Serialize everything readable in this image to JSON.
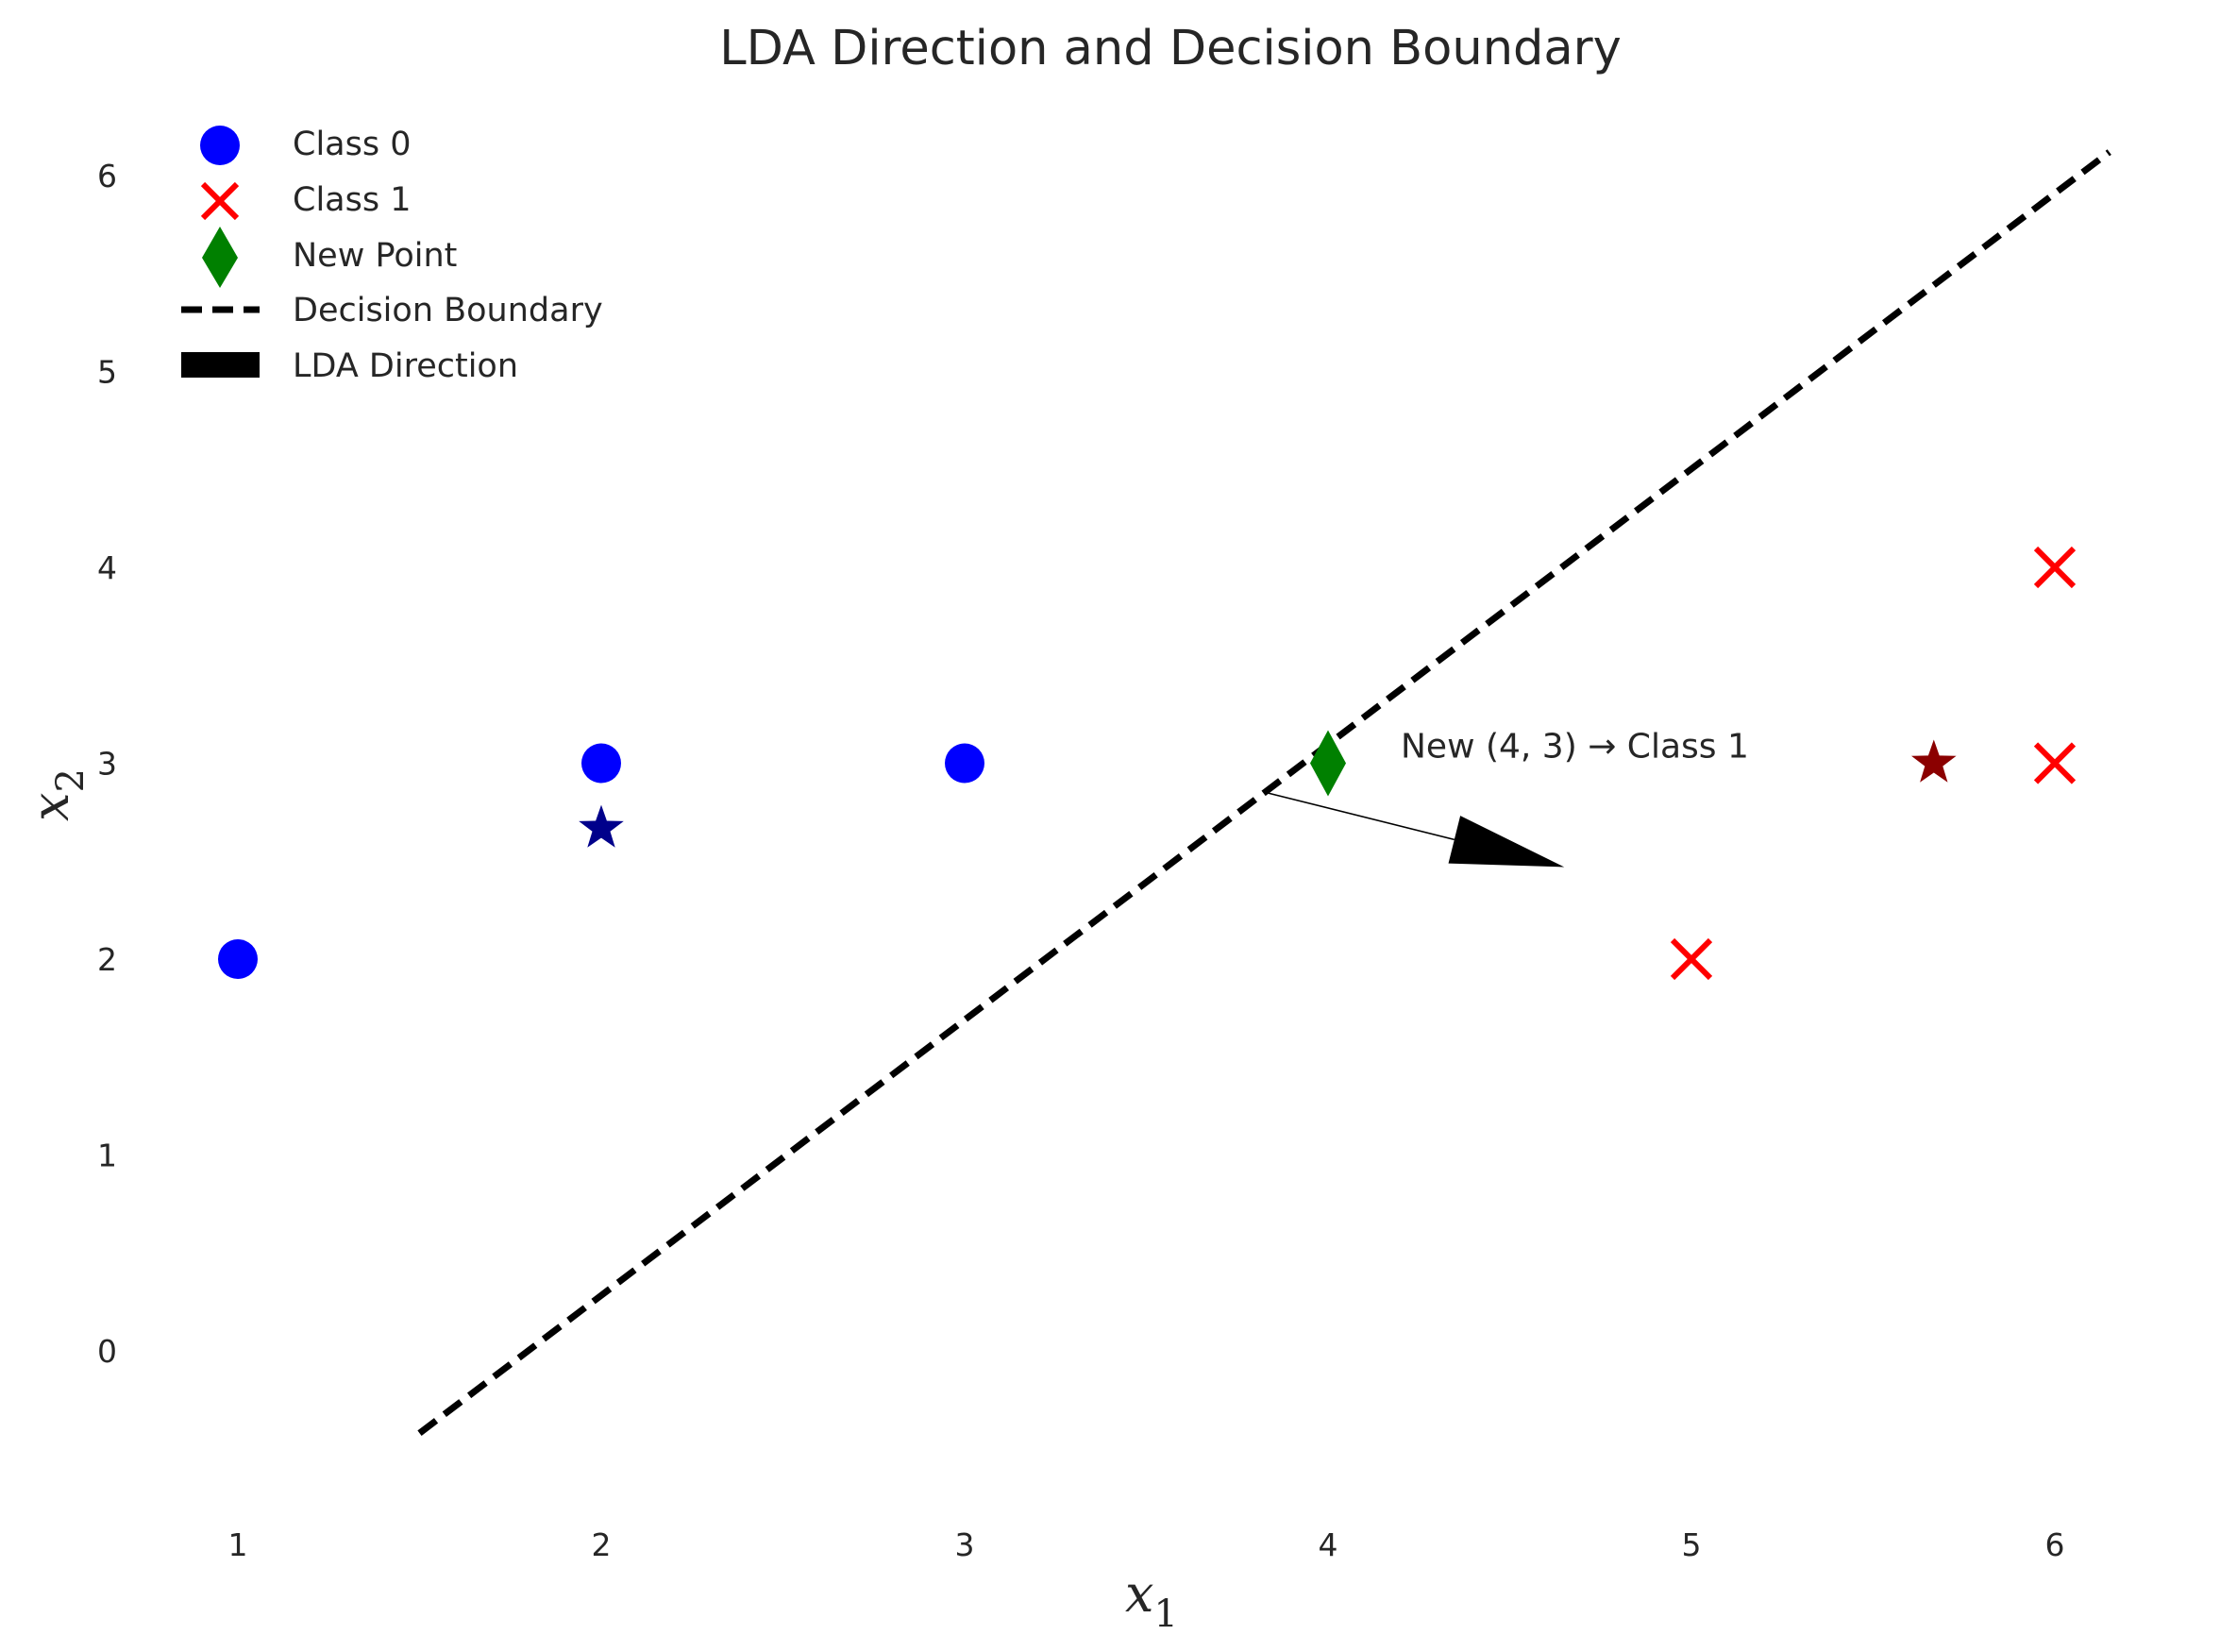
{
  "chart_data": {
    "type": "scatter",
    "title": "LDA Direction and Decision Boundary",
    "xlabel": "x",
    "xlabel_sub": "1",
    "ylabel": "x",
    "ylabel_sub": "2",
    "xlim": [
      0.5,
      6.5
    ],
    "ylim": [
      -0.95,
      6.35
    ],
    "xticks": [
      1,
      2,
      3,
      4,
      5,
      6
    ],
    "yticks": [
      0,
      1,
      2,
      3,
      4,
      5,
      6
    ],
    "grid": false,
    "legend_position": "top-left",
    "series": [
      {
        "name": "Class 0",
        "marker": "circle",
        "color": "#0000ff",
        "points": [
          [
            1,
            2
          ],
          [
            2,
            3
          ],
          [
            3,
            3
          ]
        ]
      },
      {
        "name": "Class 1",
        "marker": "x",
        "color": "#ff0000",
        "points": [
          [
            5,
            2
          ],
          [
            6,
            3
          ],
          [
            6,
            4
          ]
        ]
      },
      {
        "name": "New Point",
        "marker": "diamond",
        "color": "#008000",
        "points": [
          [
            4,
            3
          ]
        ]
      }
    ],
    "class_means": [
      {
        "marker": "star",
        "color": "#00008b",
        "point": [
          2,
          2.667
        ]
      },
      {
        "marker": "star",
        "color": "#8b0000",
        "point": [
          5.667,
          3
        ]
      }
    ],
    "decision_boundary": {
      "name": "Decision Boundary",
      "style": "dashed",
      "color": "#000000",
      "points": [
        [
          1.5,
          -0.42
        ],
        [
          6.15,
          6.12
        ]
      ]
    },
    "lda_direction": {
      "name": "LDA Direction",
      "color": "#000000",
      "from": [
        3.83,
        2.85
      ],
      "to": [
        4.65,
        2.47
      ]
    },
    "annotation": {
      "text": "New (4, 3) → Class 1",
      "at": [
        4.2,
        3.03
      ]
    }
  }
}
